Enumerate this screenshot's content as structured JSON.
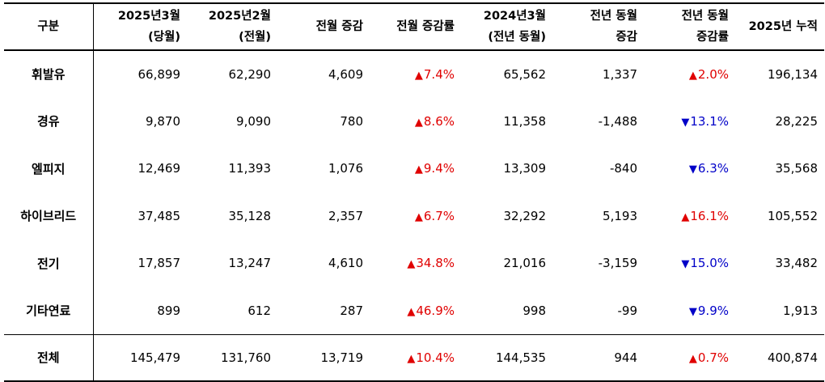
{
  "headers": [
    [
      "구분"
    ],
    [
      "2025년3월",
      "(당월)"
    ],
    [
      "2025년2월",
      "(전월)"
    ],
    [
      "전월 증감"
    ],
    [
      "전월 증감률"
    ],
    [
      "2024년3월",
      "(전년 동월)"
    ],
    [
      "전년 동월",
      "증감"
    ],
    [
      "전년 동월",
      "증감률"
    ],
    [
      "2025년 누적"
    ]
  ],
  "rows": [
    {
      "label": "휘발유",
      "cur": "66,899",
      "prev": "62,290",
      "mom": "4,609",
      "mom_rate": "7.4%",
      "mom_dir": "up",
      "last_year": "65,562",
      "yoy": "1,337",
      "yoy_rate": "2.0%",
      "yoy_dir": "up",
      "ytd": "196,134"
    },
    {
      "label": "경유",
      "cur": "9,870",
      "prev": "9,090",
      "mom": "780",
      "mom_rate": "8.6%",
      "mom_dir": "up",
      "last_year": "11,358",
      "yoy": "-1,488",
      "yoy_rate": "13.1%",
      "yoy_dir": "down",
      "ytd": "28,225"
    },
    {
      "label": "엘피지",
      "cur": "12,469",
      "prev": "11,393",
      "mom": "1,076",
      "mom_rate": "9.4%",
      "mom_dir": "up",
      "last_year": "13,309",
      "yoy": "-840",
      "yoy_rate": "6.3%",
      "yoy_dir": "down",
      "ytd": "35,568"
    },
    {
      "label": "하이브리드",
      "cur": "37,485",
      "prev": "35,128",
      "mom": "2,357",
      "mom_rate": "6.7%",
      "mom_dir": "up",
      "last_year": "32,292",
      "yoy": "5,193",
      "yoy_rate": "16.1%",
      "yoy_dir": "up",
      "ytd": "105,552"
    },
    {
      "label": "전기",
      "cur": "17,857",
      "prev": "13,247",
      "mom": "4,610",
      "mom_rate": "34.8%",
      "mom_dir": "up",
      "last_year": "21,016",
      "yoy": "-3,159",
      "yoy_rate": "15.0%",
      "yoy_dir": "down",
      "ytd": "33,482"
    },
    {
      "label": "기타연료",
      "cur": "899",
      "prev": "612",
      "mom": "287",
      "mom_rate": "46.9%",
      "mom_dir": "up",
      "last_year": "998",
      "yoy": "-99",
      "yoy_rate": "9.9%",
      "yoy_dir": "down",
      "ytd": "1,913"
    }
  ],
  "total": {
    "label": "전체",
    "cur": "145,479",
    "prev": "131,760",
    "mom": "13,719",
    "mom_rate": "10.4%",
    "mom_dir": "up",
    "last_year": "144,535",
    "yoy": "944",
    "yoy_rate": "0.7%",
    "yoy_dir": "up",
    "ytd": "400,874"
  },
  "arrows": {
    "up": "▲",
    "down": "▼"
  },
  "colors": {
    "up": "#e00000",
    "down": "#0000c8"
  }
}
